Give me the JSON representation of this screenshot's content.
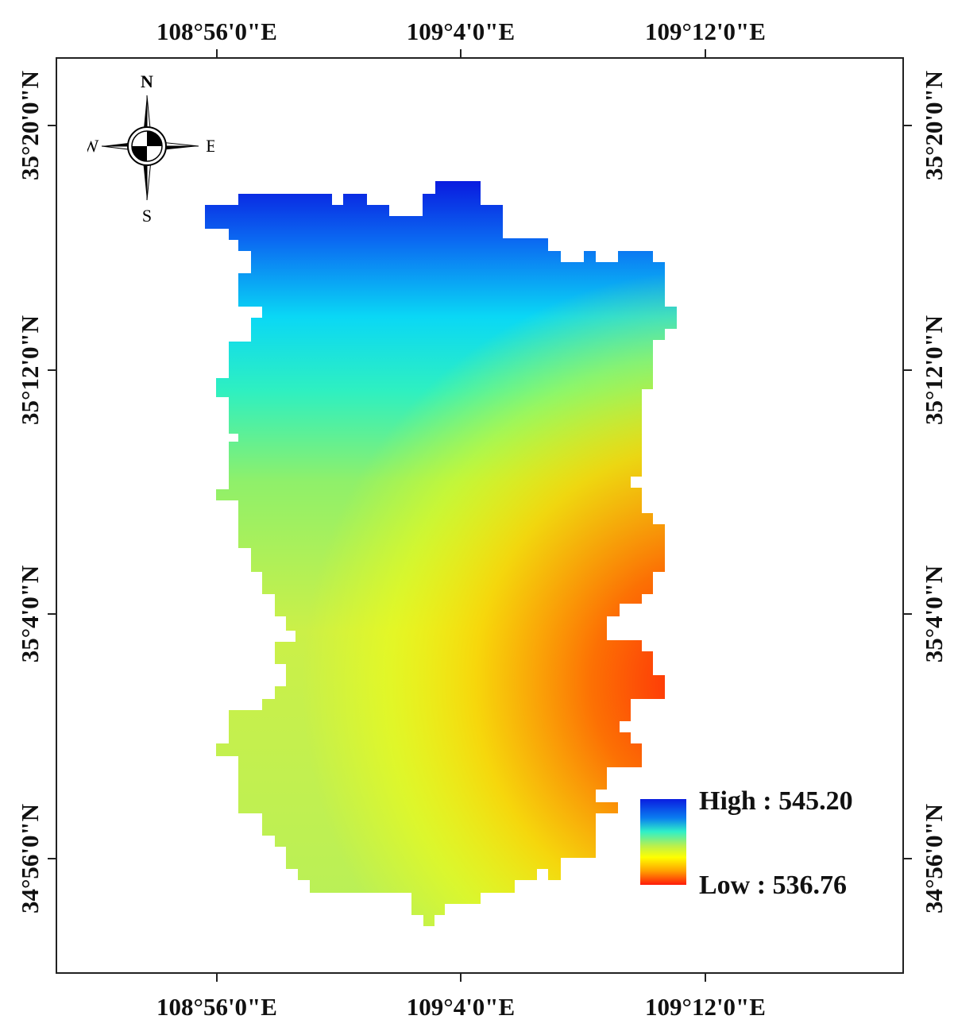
{
  "graticule": {
    "longitudes": [
      "108°56'0\"E",
      "109°4'0\"E",
      "109°12'0\"E"
    ],
    "latitudes": [
      "35°20'0\"N",
      "35°12'0\"N",
      "35°4'0\"N",
      "34°56'0\"N"
    ]
  },
  "north_arrow": {
    "n": "N",
    "s": "S",
    "e": "E",
    "w": "W",
    "icon": "compass-rose-icon"
  },
  "legend": {
    "high_label": "High : 545.20",
    "low_label": "Low : 536.76",
    "colors": [
      "#0a1de0",
      "#0aa7f0",
      "#2ff0c8",
      "#bdf04a",
      "#ffff00",
      "#ffa000",
      "#ff1a0a"
    ]
  }
}
